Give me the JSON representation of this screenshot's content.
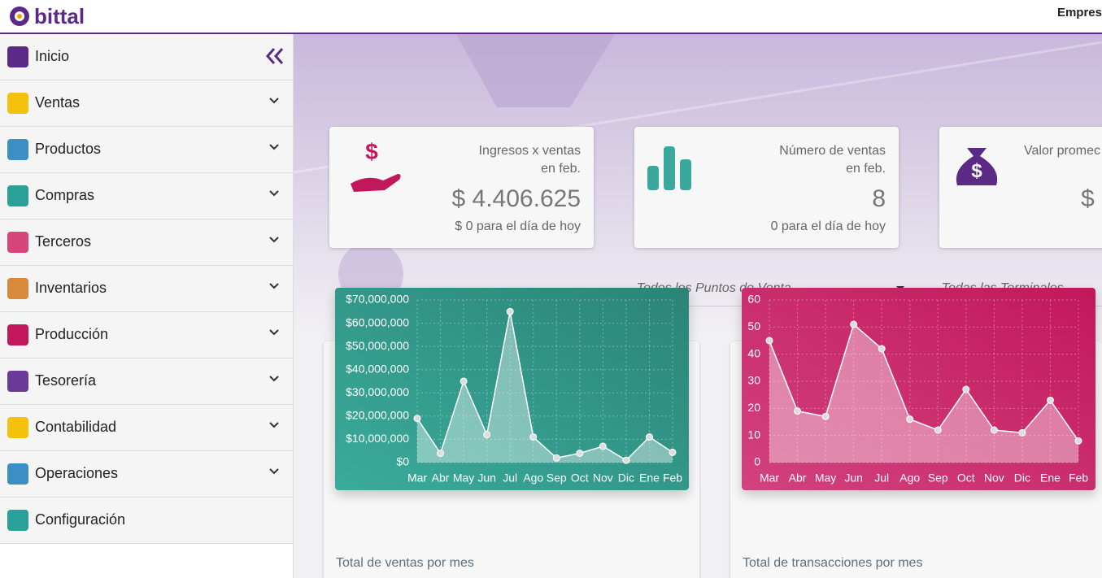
{
  "header": {
    "logo": "bittal",
    "company": "Empres"
  },
  "sidebar": {
    "items": [
      "Inicio",
      "Ventas",
      "Productos",
      "Compras",
      "Terceros",
      "Inventarios",
      "Producción",
      "Tesorería",
      "Contabilidad",
      "Operaciones",
      "Configuración"
    ]
  },
  "cards": [
    {
      "title": "Ingresos x ventas",
      "period": "en feb.",
      "value": "$ 4.406.625",
      "today": "$ 0 para el día de hoy"
    },
    {
      "title": "Número de ventas",
      "period": "en feb.",
      "value": "8",
      "today": "0 para el día de hoy"
    },
    {
      "title": "Valor promec",
      "value": "$"
    }
  ],
  "filters": [
    "--Todos los Puntos de Venta--",
    "--Todas las Terminales--"
  ],
  "chart_data": [
    {
      "type": "area",
      "title": "Total de ventas por mes",
      "categories": [
        "Mar",
        "Abr",
        "May",
        "Jun",
        "Jul",
        "Ago",
        "Sep",
        "Oct",
        "Nov",
        "Dic",
        "Ene",
        "Feb"
      ],
      "values": [
        19000000,
        4000000,
        35000000,
        12000000,
        65000000,
        11000000,
        2000000,
        4000000,
        7000000,
        1000000,
        11000000,
        4406625
      ],
      "color": "#ffffff",
      "ylim": [
        0,
        70000000
      ],
      "yticks": [
        {
          "value": 0,
          "label": "$0"
        },
        {
          "value": 10000000,
          "label": "$10,000,000"
        },
        {
          "value": 20000000,
          "label": "$20,000,000"
        },
        {
          "value": 30000000,
          "label": "$30,000,000"
        },
        {
          "value": 40000000,
          "label": "$40,000,000"
        },
        {
          "value": 50000000,
          "label": "$50,000,000"
        },
        {
          "value": 60000000,
          "label": "$60,000,000"
        },
        {
          "value": 70000000,
          "label": "$70,000,000"
        }
      ],
      "grid": true
    },
    {
      "type": "area",
      "title": "Total de transacciones por mes",
      "categories": [
        "Mar",
        "Abr",
        "May",
        "Jun",
        "Jul",
        "Ago",
        "Sep",
        "Oct",
        "Nov",
        "Dic",
        "Ene",
        "Feb"
      ],
      "values": [
        45,
        19,
        17,
        51,
        42,
        16,
        12,
        27,
        12,
        11,
        23,
        8
      ],
      "color": "#ffffff",
      "ylim": [
        0,
        60
      ],
      "yticks": [
        0,
        10,
        20,
        30,
        40,
        50,
        60
      ],
      "grid": true
    }
  ]
}
